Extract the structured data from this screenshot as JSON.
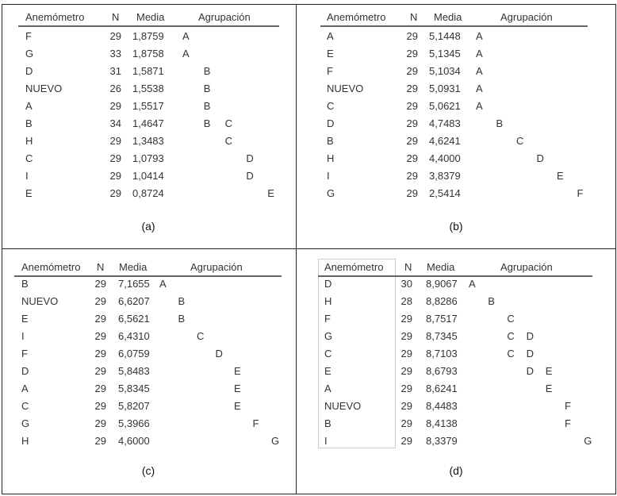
{
  "headers": {
    "name": "Anemómetro",
    "n": "N",
    "mean": "Media",
    "group": "Agrupación"
  },
  "panels": [
    {
      "caption": "(a)",
      "rows": [
        {
          "name": "F",
          "n": "29",
          "mean": "1,8759",
          "groups": [
            "A"
          ]
        },
        {
          "name": "G",
          "n": "33",
          "mean": "1,8758",
          "groups": [
            "A"
          ]
        },
        {
          "name": "D",
          "n": "31",
          "mean": "1,5871",
          "groups": [
            "B"
          ]
        },
        {
          "name": "NUEVO",
          "n": "26",
          "mean": "1,5538",
          "groups": [
            "B"
          ]
        },
        {
          "name": "A",
          "n": "29",
          "mean": "1,5517",
          "groups": [
            "B"
          ]
        },
        {
          "name": "B",
          "n": "34",
          "mean": "1,4647",
          "groups": [
            "B",
            "C"
          ]
        },
        {
          "name": "H",
          "n": "29",
          "mean": "1,3483",
          "groups": [
            "C"
          ]
        },
        {
          "name": "C",
          "n": "29",
          "mean": "1,0793",
          "groups": [
            "D"
          ]
        },
        {
          "name": "I",
          "n": "29",
          "mean": "1,0414",
          "groups": [
            "D"
          ]
        },
        {
          "name": "E",
          "n": "29",
          "mean": "0,8724",
          "groups": [
            "E"
          ]
        }
      ]
    },
    {
      "caption": "(b)",
      "rows": [
        {
          "name": "A",
          "n": "29",
          "mean": "5,1448",
          "groups": [
            "A"
          ]
        },
        {
          "name": "E",
          "n": "29",
          "mean": "5,1345",
          "groups": [
            "A"
          ]
        },
        {
          "name": "F",
          "n": "29",
          "mean": "5,1034",
          "groups": [
            "A"
          ]
        },
        {
          "name": "NUEVO",
          "n": "29",
          "mean": "5,0931",
          "groups": [
            "A"
          ]
        },
        {
          "name": "C",
          "n": "29",
          "mean": "5,0621",
          "groups": [
            "A"
          ]
        },
        {
          "name": "D",
          "n": "29",
          "mean": "4,7483",
          "groups": [
            "B"
          ]
        },
        {
          "name": "B",
          "n": "29",
          "mean": "4,6241",
          "groups": [
            "C"
          ]
        },
        {
          "name": "H",
          "n": "29",
          "mean": "4,4000",
          "groups": [
            "D"
          ]
        },
        {
          "name": "I",
          "n": "29",
          "mean": "3,8379",
          "groups": [
            "E"
          ]
        },
        {
          "name": "G",
          "n": "29",
          "mean": "2,5414",
          "groups": [
            "F"
          ]
        }
      ]
    },
    {
      "caption": "(c)",
      "rows": [
        {
          "name": "B",
          "n": "29",
          "mean": "7,1655",
          "groups": [
            "A"
          ]
        },
        {
          "name": "NUEVO",
          "n": "29",
          "mean": "6,6207",
          "groups": [
            "B"
          ]
        },
        {
          "name": "E",
          "n": "29",
          "mean": "6,5621",
          "groups": [
            "B"
          ]
        },
        {
          "name": "I",
          "n": "29",
          "mean": "6,4310",
          "groups": [
            "C"
          ]
        },
        {
          "name": "F",
          "n": "29",
          "mean": "6,0759",
          "groups": [
            "D"
          ]
        },
        {
          "name": "D",
          "n": "29",
          "mean": "5,8483",
          "groups": [
            "E"
          ]
        },
        {
          "name": "A",
          "n": "29",
          "mean": "5,8345",
          "groups": [
            "E"
          ]
        },
        {
          "name": "C",
          "n": "29",
          "mean": "5,8207",
          "groups": [
            "E"
          ]
        },
        {
          "name": "G",
          "n": "29",
          "mean": "5,3966",
          "groups": [
            "F"
          ]
        },
        {
          "name": "H",
          "n": "29",
          "mean": "4,6000",
          "groups": [
            "G"
          ]
        }
      ]
    },
    {
      "caption": "(d)",
      "rows": [
        {
          "name": "D",
          "n": "30",
          "mean": "8,9067",
          "groups": [
            "A"
          ]
        },
        {
          "name": "H",
          "n": "28",
          "mean": "8,8286",
          "groups": [
            "B"
          ]
        },
        {
          "name": "F",
          "n": "29",
          "mean": "8,7517",
          "groups": [
            "C"
          ]
        },
        {
          "name": "G",
          "n": "29",
          "mean": "8,7345",
          "groups": [
            "C",
            "D"
          ]
        },
        {
          "name": "C",
          "n": "29",
          "mean": "8,7103",
          "groups": [
            "C",
            "D"
          ]
        },
        {
          "name": "E",
          "n": "29",
          "mean": "8,6793",
          "groups": [
            "D",
            "E"
          ]
        },
        {
          "name": "A",
          "n": "29",
          "mean": "8,6241",
          "groups": [
            "E"
          ]
        },
        {
          "name": "NUEVO",
          "n": "29",
          "mean": "8,4483",
          "groups": [
            "F"
          ]
        },
        {
          "name": "B",
          "n": "29",
          "mean": "8,4138",
          "groups": [
            "F"
          ]
        },
        {
          "name": "I",
          "n": "29",
          "mean": "8,3379",
          "groups": [
            "G"
          ]
        }
      ]
    }
  ]
}
